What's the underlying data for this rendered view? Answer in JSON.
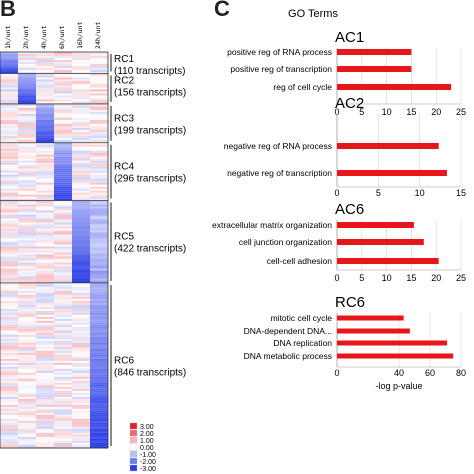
{
  "panels": {
    "left": "B",
    "right": "C"
  },
  "heatmap": {
    "columns": [
      "1h/unt",
      "2h/unt",
      "4h/unt",
      "6h/unt",
      "16h/unt",
      "24h/unt"
    ],
    "clusters": [
      {
        "name": "RC1",
        "count": "(110 transcripts)",
        "size": 110,
        "col": 0
      },
      {
        "name": "RC2",
        "count": "(156 transcripts)",
        "size": 156,
        "col": 1
      },
      {
        "name": "RC3",
        "count": "(199 transcripts)",
        "size": 199,
        "col": 2
      },
      {
        "name": "RC4",
        "count": "(296 transcripts)",
        "size": 296,
        "col": 3
      },
      {
        "name": "RC5",
        "count": "(422 transcripts)",
        "size": 422,
        "col": 4
      },
      {
        "name": "RC6",
        "count": "(846 transcripts)",
        "size": 846,
        "col": 5
      }
    ],
    "scale": [
      "3.00",
      "2.00",
      "1.00",
      "0.00",
      "-1.00",
      "-2.00",
      "-3.00"
    ],
    "colors": {
      "high": "#e8202a",
      "mid": "#ffffff",
      "low": "#2a3de8"
    }
  },
  "chart_data": [
    {
      "type": "bar",
      "orientation": "horizontal",
      "title": "AC1",
      "categories": [
        "positive reg of RNA process",
        "positive reg of transcription",
        "reg of cell cycle"
      ],
      "values": [
        15,
        15,
        23
      ],
      "xlim": [
        0,
        25
      ],
      "xticks": [
        "0",
        "5",
        "10",
        "15",
        "20",
        "25"
      ]
    },
    {
      "type": "bar",
      "orientation": "horizontal",
      "title": "AC2",
      "categories": [
        "negative reg of RNA process",
        "negative reg of transcription"
      ],
      "values": [
        12.3,
        13.3
      ],
      "xlim": [
        0,
        15
      ],
      "xticks": [
        "0",
        "5",
        "10",
        "15"
      ]
    },
    {
      "type": "bar",
      "orientation": "horizontal",
      "title": "AC6",
      "categories": [
        "extracellular matrix organization",
        "cell junction organization",
        "cell-cell adhesion"
      ],
      "values": [
        15.5,
        17.5,
        20.5
      ],
      "xlim": [
        0,
        25
      ],
      "xticks": [
        "0",
        "5",
        "10",
        "15",
        "20",
        "25"
      ]
    },
    {
      "type": "bar",
      "orientation": "horizontal",
      "title": "RC6",
      "categories": [
        "mitotic cell cycle",
        "DNA-dependent DNA...",
        "DNA replication",
        "DNA metabolic process"
      ],
      "values": [
        43,
        47,
        71,
        75
      ],
      "xlim": [
        0,
        80
      ],
      "xticks": [
        "0",
        "40",
        "60",
        "80"
      ],
      "xlabel": "-log p-value"
    }
  ],
  "go_title": "GO Terms",
  "bar_color": "#e8151b"
}
